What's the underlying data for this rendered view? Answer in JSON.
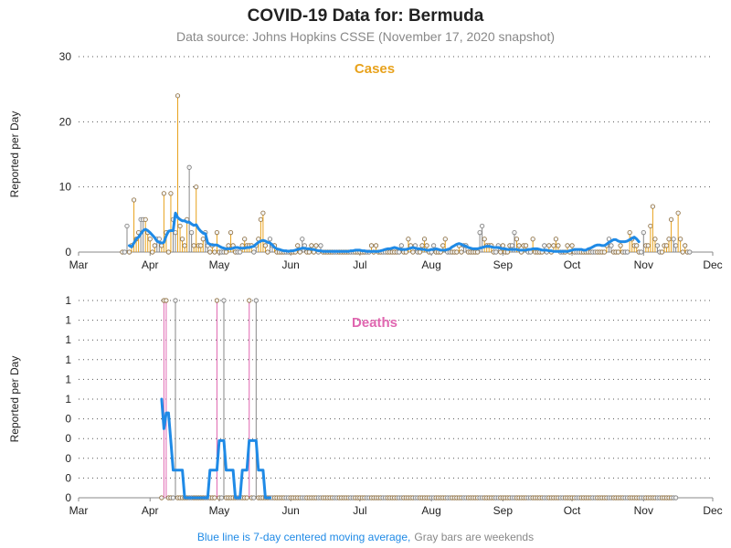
{
  "title": "COVID-19 Data for: Bermuda",
  "subtitle": "Data source: Johns Hopkins CSSE (November 17, 2020 snapshot)",
  "footnote": {
    "blue_part": "Blue line is 7-day centered moving average,",
    "gray_part": "Gray bars are weekends"
  },
  "colors": {
    "cases": "#e8a21c",
    "deaths": "#e066b0",
    "moving_average": "#1f8ae6",
    "weekend": "#888888"
  },
  "chart_data": [
    {
      "type": "bar",
      "panel": "Cases",
      "title": "Cases",
      "ylabel": "Reported per Day",
      "ylim": [
        0,
        30
      ],
      "yticks": [
        0,
        10,
        20,
        30
      ],
      "ytick_labels": [
        "0",
        "10",
        "20",
        "30"
      ],
      "xlim": [
        "2020-03-01",
        "2020-12-01"
      ],
      "xticks": [
        "2020-03-01",
        "2020-04-01",
        "2020-05-01",
        "2020-06-01",
        "2020-07-01",
        "2020-08-01",
        "2020-09-01",
        "2020-10-01",
        "2020-11-01",
        "2020-12-01"
      ],
      "xtick_labels": [
        "Mar",
        "Apr",
        "May",
        "Jun",
        "Jul",
        "Aug",
        "Sep",
        "Oct",
        "Nov",
        "Dec"
      ],
      "grid": true,
      "series": [
        {
          "values_start_date": "2020-03-20",
          "values": [
            0,
            0,
            4,
            0,
            1,
            8,
            2,
            3,
            5,
            5,
            5,
            3,
            2,
            0,
            1,
            2,
            2,
            1,
            9,
            3,
            0,
            9,
            5,
            3,
            24,
            4,
            2,
            1,
            5,
            13,
            3,
            1,
            10,
            1,
            1,
            2,
            3,
            1,
            0,
            1,
            0,
            3,
            0,
            0,
            0,
            0,
            1,
            3,
            1,
            0,
            0,
            0,
            1,
            2,
            1,
            1,
            1,
            0,
            1,
            2,
            5,
            6,
            1,
            0,
            2,
            1,
            1,
            0,
            0,
            0,
            0,
            0,
            0,
            0,
            0,
            0,
            1,
            0,
            2,
            1,
            0,
            0,
            1,
            0,
            1,
            0,
            1,
            0,
            0,
            0,
            0,
            0,
            0,
            0,
            0,
            0,
            0,
            0,
            0,
            0,
            0,
            0,
            0,
            0,
            0,
            0,
            0,
            0,
            1,
            0,
            1,
            0,
            0,
            0,
            0,
            0,
            0,
            0,
            0,
            0,
            0,
            1,
            0,
            0,
            2,
            1,
            0,
            1,
            0,
            0,
            1,
            2,
            1,
            0,
            0,
            1,
            0,
            0,
            0,
            1,
            2,
            0,
            0,
            0,
            0,
            0,
            1,
            0,
            1,
            1,
            0,
            0,
            0,
            0,
            0,
            3,
            4,
            2,
            1,
            1,
            1,
            0,
            0,
            1,
            0,
            1,
            0,
            0,
            1,
            1,
            3,
            2,
            1,
            0,
            1,
            1,
            0,
            0,
            2,
            0,
            0,
            0,
            0,
            1,
            0,
            1,
            0,
            1,
            2,
            1,
            0,
            0,
            0,
            1,
            0,
            1,
            0,
            0,
            0,
            0,
            0,
            0,
            0,
            0,
            0,
            0,
            0,
            0,
            0,
            0,
            1,
            2,
            1,
            0,
            0,
            0,
            1,
            0,
            0,
            0,
            3,
            2,
            1,
            1,
            0,
            0,
            3,
            1,
            1,
            4,
            7,
            2,
            1,
            0,
            0,
            1,
            1,
            2,
            5,
            2,
            1,
            6,
            2,
            0,
            1,
            0,
            0
          ]
        }
      ],
      "moving_average": {
        "start_date": "2020-03-23",
        "values": [
          1.0,
          0.8,
          1.4,
          2.0,
          2.3,
          2.8,
          3.3,
          3.5,
          3.3,
          3.0,
          2.6,
          2.2,
          1.7,
          1.5,
          1.4,
          1.5,
          2.5,
          3.2,
          3.3,
          3.3,
          6.0,
          5.3,
          5.0,
          4.8,
          4.8,
          4.6,
          4.6,
          4.3,
          4.1,
          4.2,
          3.6,
          3.2,
          2.9,
          2.8,
          1.4,
          1.2,
          1.1,
          1.1,
          1.1,
          0.9,
          0.7,
          0.6,
          0.5,
          0.5,
          0.5,
          0.6,
          0.7,
          0.7,
          0.6,
          0.6,
          0.6,
          0.7,
          0.7,
          0.8,
          0.9,
          1.2,
          1.5,
          1.7,
          1.8,
          1.7,
          1.5,
          1.4,
          1.1,
          0.7,
          0.5,
          0.4,
          0.3,
          0.2,
          0.2,
          0.1,
          0.2,
          0.2,
          0.3,
          0.4,
          0.5,
          0.6,
          0.6,
          0.5,
          0.5,
          0.4,
          0.4,
          0.3,
          0.2,
          0.2,
          0.1,
          0.1,
          0.1,
          0.1,
          0.1,
          0.1,
          0.1,
          0.1,
          0.1,
          0.1,
          0.1,
          0.1,
          0.2,
          0.2,
          0.3,
          0.3,
          0.3,
          0.2,
          0.2,
          0.1,
          0.1,
          0.1,
          0.1,
          0.1,
          0.1,
          0.2,
          0.3,
          0.4,
          0.5,
          0.5,
          0.6,
          0.7,
          0.6,
          0.5,
          0.4,
          0.4,
          0.4,
          0.5,
          0.6,
          0.7,
          0.6,
          0.5,
          0.5,
          0.4,
          0.4,
          0.3,
          0.3,
          0.4,
          0.4,
          0.5,
          0.4,
          0.3,
          0.3,
          0.3,
          0.4,
          0.5,
          0.8,
          1.0,
          1.2,
          1.3,
          1.2,
          1.0,
          0.9,
          0.7,
          0.6,
          0.5,
          0.5,
          0.5,
          0.6,
          0.7,
          0.8,
          0.9,
          0.9,
          0.8,
          0.7,
          0.7,
          0.7,
          0.6,
          0.5,
          0.5,
          0.4,
          0.4,
          0.4,
          0.4,
          0.4,
          0.3,
          0.3,
          0.3,
          0.3,
          0.4,
          0.4,
          0.5,
          0.5,
          0.5,
          0.4,
          0.3,
          0.3,
          0.3,
          0.2,
          0.2,
          0.1,
          0.1,
          0.1,
          0.1,
          0.1,
          0.1,
          0.1,
          0.2,
          0.3,
          0.4,
          0.4,
          0.4,
          0.4,
          0.3,
          0.3,
          0.5,
          0.6,
          0.8,
          1.0,
          1.1,
          1.1,
          1.0,
          1.0,
          1.2,
          1.5,
          1.7,
          1.9,
          1.9,
          1.7,
          1.6,
          1.6,
          1.6,
          1.7,
          1.9,
          2.1,
          2.3,
          2.0,
          1.6
        ]
      }
    },
    {
      "type": "bar",
      "panel": "Deaths",
      "title": "Deaths",
      "ylabel": "Reported per Day",
      "ylim": [
        0,
        1
      ],
      "yticks": [
        0,
        0.1,
        0.2,
        0.3,
        0.4,
        0.5,
        0.6,
        0.7,
        0.8,
        0.9,
        1.0
      ],
      "ytick_labels": [
        "0",
        "0",
        "0",
        "0",
        "0",
        "1",
        "1",
        "1",
        "1",
        "1",
        "1"
      ],
      "xlim": [
        "2020-03-01",
        "2020-12-01"
      ],
      "xticks": [
        "2020-03-01",
        "2020-04-01",
        "2020-05-01",
        "2020-06-01",
        "2020-07-01",
        "2020-08-01",
        "2020-09-01",
        "2020-10-01",
        "2020-11-01",
        "2020-12-01"
      ],
      "xtick_labels": [
        "Mar",
        "Apr",
        "May",
        "Jun",
        "Jul",
        "Aug",
        "Sep",
        "Oct",
        "Nov",
        "Dec"
      ],
      "grid": true,
      "series": [
        {
          "values_start_date": "2020-04-06",
          "values": [
            0,
            1,
            1,
            0,
            0,
            0,
            1,
            0,
            0,
            0,
            0,
            0,
            0,
            0,
            0,
            0,
            0,
            0,
            0,
            0,
            0,
            0,
            0,
            0,
            1,
            0,
            0,
            1,
            0,
            0,
            0,
            0,
            0,
            0,
            0,
            0,
            0,
            0,
            1,
            0,
            0,
            1,
            0,
            0,
            0,
            0,
            0,
            0,
            0,
            0,
            0,
            0,
            0,
            0,
            0,
            0,
            0,
            0,
            0,
            0,
            0,
            0,
            0,
            0,
            0,
            0,
            0,
            0,
            0,
            0,
            0,
            0,
            0,
            0,
            0,
            0,
            0,
            0,
            0,
            0,
            0,
            0,
            0,
            0,
            0,
            0,
            0,
            0,
            0,
            0,
            0,
            0,
            0,
            0,
            0,
            0,
            0,
            0,
            0,
            0,
            0,
            0,
            0,
            0,
            0,
            0,
            0,
            0,
            0,
            0,
            0,
            0,
            0,
            0,
            0,
            0,
            0,
            0,
            0,
            0,
            0,
            0,
            0,
            0,
            0,
            0,
            0,
            0,
            0,
            0,
            0,
            0,
            0,
            0,
            0,
            0,
            0,
            0,
            0,
            0,
            0,
            0,
            0,
            0,
            0,
            0,
            0,
            0,
            0,
            0,
            0,
            0,
            0,
            0,
            0,
            0,
            0,
            0,
            0,
            0,
            0,
            0,
            0,
            0,
            0,
            0,
            0,
            0,
            0,
            0,
            0,
            0,
            0,
            0,
            0,
            0,
            0,
            0,
            0,
            0,
            0,
            0,
            0,
            0,
            0,
            0,
            0,
            0,
            0,
            0,
            0,
            0,
            0,
            0,
            0,
            0,
            0,
            0,
            0,
            0,
            0,
            0,
            0,
            0,
            0,
            0,
            0,
            0,
            0,
            0,
            0,
            0,
            0,
            0,
            0,
            0,
            0,
            0,
            0,
            0,
            0,
            0,
            0,
            0
          ]
        }
      ],
      "moving_average": {
        "start_date": "2020-04-06",
        "values": [
          0.5,
          0.35,
          0.43,
          0.43,
          0.29,
          0.14,
          0.14,
          0.14,
          0.14,
          0.14,
          0.0,
          0.0,
          0.0,
          0.0,
          0.0,
          0.0,
          0.0,
          0.0,
          0.0,
          0.0,
          0.0,
          0.14,
          0.14,
          0.14,
          0.14,
          0.29,
          0.29,
          0.29,
          0.14,
          0.14,
          0.14,
          0.14,
          0.0,
          0.0,
          0.0,
          0.14,
          0.14,
          0.14,
          0.29,
          0.29,
          0.29,
          0.29,
          0.14,
          0.14,
          0.14,
          0.0,
          0.0,
          0.0
        ]
      }
    }
  ]
}
